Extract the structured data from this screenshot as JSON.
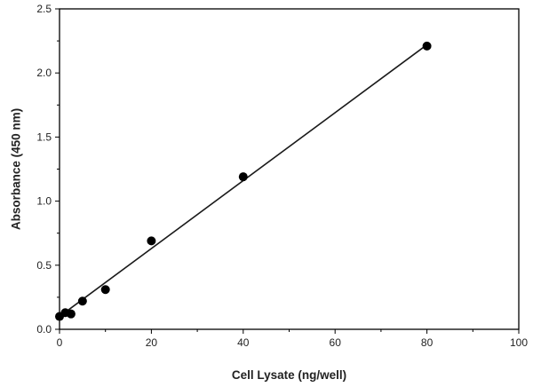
{
  "chart_data": {
    "type": "scatter",
    "title": "",
    "xlabel": "Cell Lysate (ng/well)",
    "ylabel": "Absorbance (450 nm)",
    "xlim": [
      0,
      100
    ],
    "ylim": [
      0,
      2.5
    ],
    "x_ticks": [
      0,
      20,
      40,
      60,
      80,
      100
    ],
    "x_tick_labels": [
      "0",
      "20",
      "40",
      "60",
      "80",
      "100"
    ],
    "y_ticks": [
      0,
      0.5,
      1.0,
      1.5,
      2.0,
      2.5
    ],
    "y_tick_labels": [
      "0.0",
      "0.5",
      "1.0",
      "1.5",
      "2.0",
      "2.5"
    ],
    "grid": false,
    "legend": "none",
    "marker_color": "#000000",
    "series": [
      {
        "x": [
          0,
          1.25,
          2.5,
          5,
          10,
          20,
          40,
          80
        ],
        "y": [
          0.1,
          0.13,
          0.12,
          0.22,
          0.31,
          0.69,
          1.19,
          2.21
        ]
      }
    ],
    "fit_line": {
      "x": [
        0,
        80
      ],
      "y": [
        0.1,
        2.22
      ]
    }
  }
}
